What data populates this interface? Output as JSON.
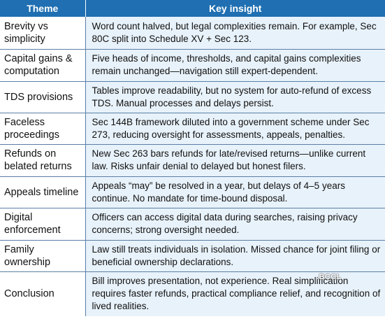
{
  "header": {
    "theme": "Theme",
    "insight": "Key insight"
  },
  "rows": [
    {
      "theme": "Brevity vs simplicity",
      "insight": "Word count halved, but legal complexities remain. For example, Sec 80C split into Schedule XV + Sec 123."
    },
    {
      "theme": "Capital gains & computation",
      "insight": "Five heads of income, thresholds, and capital gains complexities remain unchanged—navigation still expert-dependent."
    },
    {
      "theme": "TDS provisions",
      "insight": "Tables improve readability, but no system for auto-refund of excess TDS. Manual processes and delays persist."
    },
    {
      "theme": "Faceless proceedings",
      "insight": "Sec 144B framework diluted into a government scheme under Sec 273, reducing oversight for assessments, appeals, penalties."
    },
    {
      "theme": "Refunds on belated returns",
      "insight": "New Sec 263 bars refunds for late/revised returns—unlike current law. Risks unfair denial to delayed but honest filers."
    },
    {
      "theme": "Appeals timeline",
      "insight": "Appeals “may” be resolved in a year, but delays of 4–5 years continue. No mandate for time-bound disposal."
    },
    {
      "theme": "Digital enforcement",
      "insight": "Officers can access digital data during searches, raising privacy concerns; strong oversight needed."
    },
    {
      "theme": "Family ownership",
      "insight": "Law still treats individuals in isolation. Missed chance for joint filing or beneficial ownership declarations."
    },
    {
      "theme": "Conclusion",
      "insight": "Bill improves presentation, not experience. Real simplification requires faster refunds, practical compliance relief, and recognition of lived realities."
    }
  ],
  "watermark": "BCCL",
  "colors": {
    "header_bg": "#1f6fb2",
    "insight_bg": "#e8f2fa",
    "rule": "#5a7fa6"
  }
}
